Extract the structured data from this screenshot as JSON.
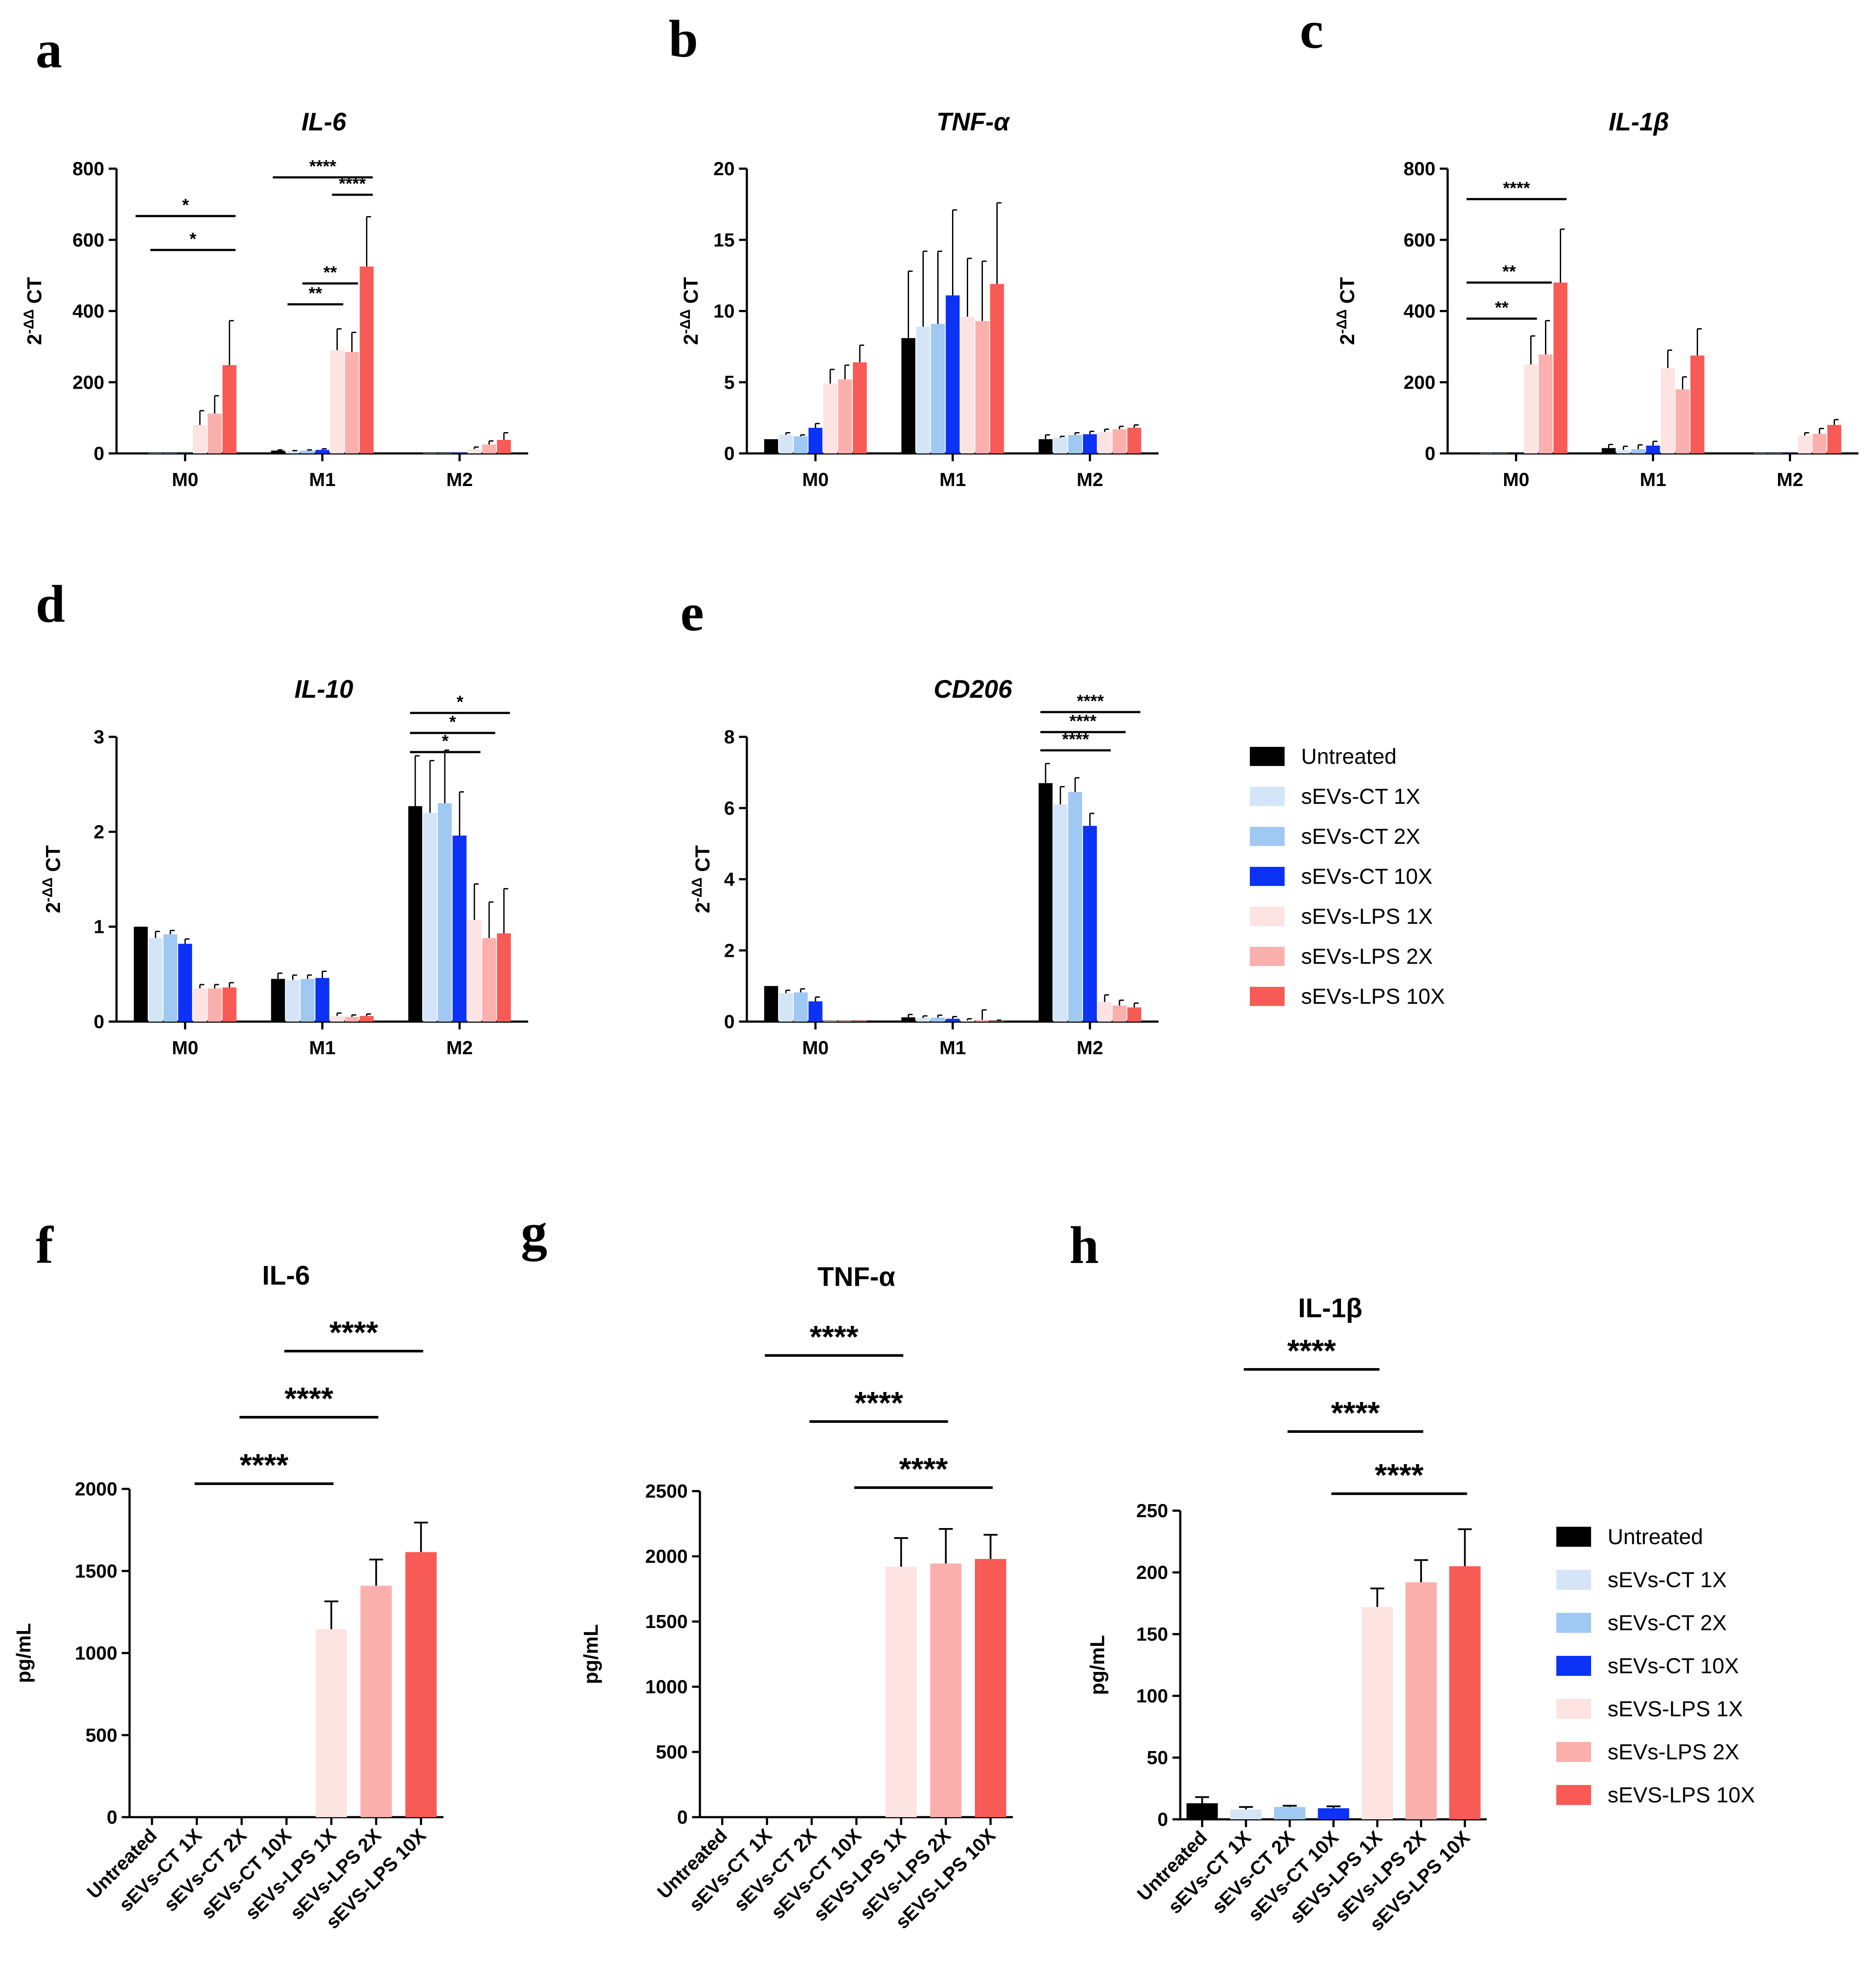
{
  "panel_labels": [
    "a",
    "b",
    "c",
    "d",
    "e",
    "f",
    "g",
    "h"
  ],
  "colors": {
    "Untreated": "#000000",
    "sEVs-CT 1X": "#d4e5f8",
    "sEVs-CT 2X": "#9fc8f3",
    "sEVs-CT 10X": "#0c32f5",
    "sEVs-LPS 1X": "#fde3e2",
    "sEVs-LPS 2X": "#fbb0ae",
    "sEVs-LPS 10X": "#f85a55"
  },
  "legend_top": {
    "entries": [
      "Untreated",
      "sEVs-CT 1X",
      "sEVs-CT 2X",
      "sEVs-CT 10X",
      "sEVs-LPS 1X",
      "sEVs-LPS  2X",
      "sEVs-LPS  10X"
    ]
  },
  "legend_bottom": {
    "entries": [
      "Untreated",
      "sEVs-CT 1X",
      "sEVs-CT 2X",
      "sEVs-CT 10X",
      "sEVS-LPS 1X",
      "sEVs-LPS 2X",
      "sEVS-LPS 10X"
    ]
  },
  "ylabel_top": {
    "base": "2",
    "sup": "-ΔΔ",
    "rest": " CT"
  },
  "chart_data": [
    {
      "panel": "a",
      "type": "bar",
      "title": "IL-6",
      "categories": [
        "M0",
        "M1",
        "M2"
      ],
      "ylim": [
        0,
        800
      ],
      "yticks": [
        "0",
        "200",
        "400",
        "600",
        "800"
      ],
      "series": [
        {
          "name": "Untreated",
          "values": [
            1,
            8,
            1
          ],
          "errors": [
            0,
            2,
            0
          ]
        },
        {
          "name": "sEVs-CT 1X",
          "values": [
            1,
            6,
            1
          ],
          "errors": [
            0,
            2,
            0
          ]
        },
        {
          "name": "sEVs-CT 2X",
          "values": [
            1,
            8,
            1
          ],
          "errors": [
            0,
            2,
            0
          ]
        },
        {
          "name": "sEVs-CT 10X",
          "values": [
            1,
            10,
            2
          ],
          "errors": [
            0,
            3,
            0
          ]
        },
        {
          "name": "sEVs-LPS 1X",
          "values": [
            80,
            290,
            12
          ],
          "errors": [
            40,
            60,
            6
          ]
        },
        {
          "name": "sEVs-LPS 2X",
          "values": [
            112,
            285,
            25
          ],
          "errors": [
            50,
            55,
            10
          ]
        },
        {
          "name": "sEVs-LPS 10X",
          "values": [
            248,
            525,
            38
          ],
          "errors": [
            125,
            140,
            20
          ]
        }
      ],
      "sig": [
        {
          "g": 0,
          "from": 0,
          "to": 6,
          "label": "*"
        },
        {
          "g": 0,
          "from": 1,
          "to": 6,
          "label": "*"
        },
        {
          "g": 1,
          "from": 0,
          "to": 6,
          "label": "****"
        },
        {
          "g": 1,
          "from": 4,
          "to": 6,
          "label": "****"
        },
        {
          "g": 1,
          "from": 2,
          "to": 5,
          "label": "**"
        },
        {
          "g": 1,
          "from": 1,
          "to": 4,
          "label": "**"
        }
      ]
    },
    {
      "panel": "b",
      "type": "bar",
      "title": "TNF-α",
      "categories": [
        "M0",
        "M1",
        "M2"
      ],
      "ylim": [
        0,
        20
      ],
      "yticks": [
        "0",
        "5",
        "10",
        "15",
        "20"
      ],
      "series": [
        {
          "name": "Untreated",
          "values": [
            1.0,
            8.1,
            1.0
          ],
          "errors": [
            0,
            4.7,
            0.3
          ]
        },
        {
          "name": "sEVs-CT 1X",
          "values": [
            1.3,
            8.9,
            1.1
          ],
          "errors": [
            0.15,
            5.3,
            0.1
          ]
        },
        {
          "name": "sEVs-CT 2X",
          "values": [
            1.2,
            9.1,
            1.3
          ],
          "errors": [
            0.1,
            5.1,
            0.15
          ]
        },
        {
          "name": "sEVs-CT 10X",
          "values": [
            1.8,
            11.1,
            1.35
          ],
          "errors": [
            0.3,
            6.0,
            0.2
          ]
        },
        {
          "name": "sEVs-LPS 1X",
          "values": [
            4.9,
            9.6,
            1.5
          ],
          "errors": [
            1.0,
            4.1,
            0.2
          ]
        },
        {
          "name": "sEVs-LPS 2X",
          "values": [
            5.2,
            9.3,
            1.7
          ],
          "errors": [
            1.0,
            4.2,
            0.2
          ]
        },
        {
          "name": "sEVs-LPS 10X",
          "values": [
            6.4,
            11.9,
            1.8
          ],
          "errors": [
            1.2,
            5.7,
            0.2
          ]
        }
      ],
      "sig": []
    },
    {
      "panel": "c",
      "type": "bar",
      "title": "IL-1β",
      "categories": [
        "M0",
        "M1",
        "M2"
      ],
      "ylim": [
        0,
        800
      ],
      "yticks": [
        "0",
        "200",
        "400",
        "600",
        "800"
      ],
      "series": [
        {
          "name": "Untreated",
          "values": [
            1,
            15,
            1
          ],
          "errors": [
            0,
            10,
            0
          ]
        },
        {
          "name": "sEVs-CT 1X",
          "values": [
            1,
            10,
            1
          ],
          "errors": [
            0,
            10,
            0
          ]
        },
        {
          "name": "sEVs-CT 2X",
          "values": [
            1,
            12,
            1
          ],
          "errors": [
            0,
            12,
            0
          ]
        },
        {
          "name": "sEVs-CT 10X",
          "values": [
            1,
            22,
            1
          ],
          "errors": [
            0,
            12,
            0
          ]
        },
        {
          "name": "sEVs-LPS 1X",
          "values": [
            250,
            240,
            50
          ],
          "errors": [
            80,
            50,
            8
          ]
        },
        {
          "name": "sEVs-LPS 2X",
          "values": [
            278,
            180,
            55
          ],
          "errors": [
            95,
            35,
            15
          ]
        },
        {
          "name": "sEVs-LPS 10X",
          "values": [
            480,
            275,
            80
          ],
          "errors": [
            150,
            75,
            15
          ]
        }
      ],
      "sig": [
        {
          "g": 0,
          "from": 0,
          "to": 6,
          "label": "****"
        },
        {
          "g": 0,
          "from": 0,
          "to": 5,
          "label": "**"
        },
        {
          "g": 0,
          "from": 0,
          "to": 4,
          "label": "**"
        }
      ]
    },
    {
      "panel": "d",
      "type": "bar",
      "title": "IL-10",
      "categories": [
        "M0",
        "M1",
        "M2"
      ],
      "ylim": [
        0,
        3
      ],
      "yticks": [
        "0",
        "1",
        "2",
        "3"
      ],
      "series": [
        {
          "name": "Untreated",
          "values": [
            1.0,
            0.45,
            2.27
          ],
          "errors": [
            0,
            0.06,
            0.53
          ]
        },
        {
          "name": "sEVs-CT 1X",
          "values": [
            0.88,
            0.44,
            2.2
          ],
          "errors": [
            0.07,
            0.05,
            0.55
          ]
        },
        {
          "name": "sEVs-CT 2X",
          "values": [
            0.92,
            0.45,
            2.3
          ],
          "errors": [
            0.04,
            0.04,
            0.56
          ]
        },
        {
          "name": "sEVs-CT 10X",
          "values": [
            0.82,
            0.46,
            1.96
          ],
          "errors": [
            0.05,
            0.07,
            0.46
          ]
        },
        {
          "name": "sEVs-LPS 1X",
          "values": [
            0.35,
            0.06,
            1.07
          ],
          "errors": [
            0.04,
            0.03,
            0.38
          ]
        },
        {
          "name": "sEVs-LPS 2X",
          "values": [
            0.35,
            0.05,
            0.88
          ],
          "errors": [
            0.04,
            0.02,
            0.38
          ]
        },
        {
          "name": "sEVs-LPS 10X",
          "values": [
            0.36,
            0.06,
            0.93
          ],
          "errors": [
            0.05,
            0.02,
            0.47
          ]
        }
      ],
      "sig": [
        {
          "g": 2,
          "from": 0,
          "to": 6,
          "label": "*"
        },
        {
          "g": 2,
          "from": 0,
          "to": 5,
          "label": "*"
        },
        {
          "g": 2,
          "from": 0,
          "to": 4,
          "label": "*"
        }
      ]
    },
    {
      "panel": "e",
      "type": "bar",
      "title": "CD206",
      "categories": [
        "M0",
        "M1",
        "M2"
      ],
      "ylim": [
        0,
        8
      ],
      "yticks": [
        "0",
        "2",
        "4",
        "6",
        "8"
      ],
      "series": [
        {
          "name": "Untreated",
          "values": [
            1.0,
            0.12,
            6.7
          ],
          "errors": [
            0,
            0.08,
            0.55
          ]
        },
        {
          "name": "sEVs-CT 1X",
          "values": [
            0.8,
            0.1,
            6.1
          ],
          "errors": [
            0.08,
            0.06,
            0.5
          ]
        },
        {
          "name": "sEVs-CT 2X",
          "values": [
            0.82,
            0.11,
            6.45
          ],
          "errors": [
            0.1,
            0.07,
            0.4
          ]
        },
        {
          "name": "sEVs-CT 10X",
          "values": [
            0.57,
            0.08,
            5.5
          ],
          "errors": [
            0.12,
            0.06,
            0.35
          ]
        },
        {
          "name": "sEVs-LPS 1X",
          "values": [
            0.02,
            0.03,
            0.55
          ],
          "errors": [
            0,
            0.05,
            0.2
          ]
        },
        {
          "name": "sEVs-LPS 2X",
          "values": [
            0.02,
            0.05,
            0.45
          ],
          "errors": [
            0,
            0.28,
            0.15
          ]
        },
        {
          "name": "sEVs-LPS 10X",
          "values": [
            0.02,
            0.02,
            0.4
          ],
          "errors": [
            0,
            0.02,
            0.12
          ]
        }
      ],
      "sig": [
        {
          "g": 2,
          "from": 0,
          "to": 6,
          "label": "****"
        },
        {
          "g": 2,
          "from": 0,
          "to": 5,
          "label": "****"
        },
        {
          "g": 2,
          "from": 0,
          "to": 4,
          "label": "****"
        }
      ]
    },
    {
      "panel": "f",
      "type": "bar",
      "title": "IL-6",
      "ylabel": "pg/mL",
      "categories": [
        "Untreated",
        "sEVs-CT 1X",
        "sEVs-CT 2X",
        "sEVs-CT 10X",
        "sEVs-LPS 1X",
        "sEVs-LPS 2X",
        "sEVS-LPS 10X"
      ],
      "ylim": [
        0,
        2000
      ],
      "yticks": [
        "0",
        "500",
        "1000",
        "1500",
        "2000"
      ],
      "values": [
        0,
        0,
        0,
        0,
        1145,
        1410,
        1615
      ],
      "errors": [
        0,
        0,
        0,
        0,
        170,
        160,
        180
      ],
      "sig": [
        {
          "from": 1,
          "to": 4,
          "label": "****"
        },
        {
          "from": 2,
          "to": 5,
          "label": "****"
        },
        {
          "from": 3,
          "to": 6,
          "label": "****"
        }
      ]
    },
    {
      "panel": "g",
      "type": "bar",
      "title": "TNF-α",
      "ylabel": "pg/mL",
      "categories": [
        "Untreated",
        "sEVs-CT 1X",
        "sEVs-CT 2X",
        "sEVs-CT 10X",
        "sEVS-LPS 1X",
        "sEVs-LPS 2X",
        "sEVS-LPS 10X"
      ],
      "ylim": [
        0,
        2500
      ],
      "yticks": [
        "0",
        "500",
        "1000",
        "1500",
        "2000",
        "2500"
      ],
      "values": [
        0,
        0,
        0,
        0,
        1920,
        1945,
        1980
      ],
      "errors": [
        0,
        0,
        0,
        0,
        220,
        265,
        185
      ],
      "sig": [
        {
          "from": 1,
          "to": 4,
          "label": "****"
        },
        {
          "from": 2,
          "to": 5,
          "label": "****"
        },
        {
          "from": 3,
          "to": 6,
          "label": "****"
        }
      ]
    },
    {
      "panel": "h",
      "type": "bar",
      "title": "IL-1β",
      "ylabel": "pg/mL",
      "categories": [
        "Untreated",
        "sEVs-CT 1X",
        "sEVs-CT 2X",
        "sEVs-CT 10X",
        "sEVS-LPS 1X",
        "sEVs-LPS 2X",
        "sEVS-LPS 10X"
      ],
      "ylim": [
        0,
        250
      ],
      "yticks": [
        "0",
        "50",
        "100",
        "150",
        "200",
        "250"
      ],
      "values": [
        13,
        8,
        10,
        9,
        172,
        192,
        205
      ],
      "errors": [
        5,
        2,
        1,
        1.5,
        15,
        18,
        30
      ],
      "sig": [
        {
          "from": 1,
          "to": 4,
          "label": "****"
        },
        {
          "from": 2,
          "to": 5,
          "label": "****"
        },
        {
          "from": 3,
          "to": 6,
          "label": "****"
        }
      ]
    }
  ]
}
